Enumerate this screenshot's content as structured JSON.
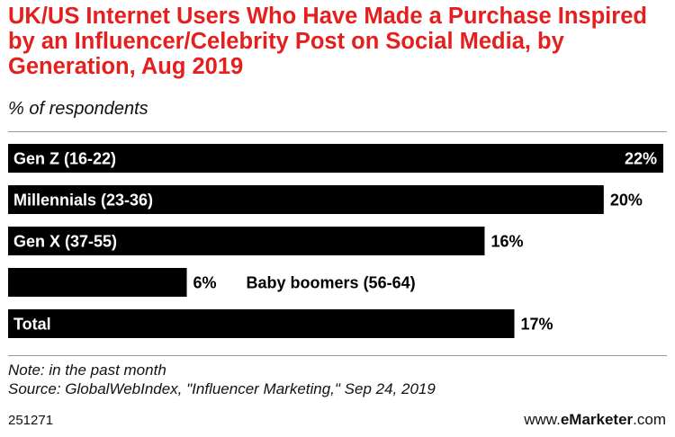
{
  "chart_data": {
    "type": "bar",
    "orientation": "horizontal",
    "title": "UK/US Internet Users Who Have Made a Purchase Inspired by an Influencer/Celebrity Post on Social Media, by Generation, Aug 2019",
    "subtitle": "% of respondents",
    "categories": [
      "Gen Z (16-22)",
      "Millennials (23-36)",
      "Gen X (37-55)",
      "Baby boomers (56-64)",
      "Total"
    ],
    "values": [
      22,
      20,
      16,
      6,
      17
    ],
    "value_labels": [
      "22%",
      "20%",
      "16%",
      "6%",
      "17%"
    ],
    "xlim": [
      0,
      22
    ],
    "grid": false,
    "bar_color": "#000000"
  },
  "notes": {
    "note": "Note: in the past month",
    "source": "Source: GlobalWebIndex, \"Influencer Marketing,\" Sep 24, 2019"
  },
  "footer": {
    "id": "251271",
    "brand_prefix": "www.",
    "brand_name": "eMarketer",
    "brand_suffix": ".com"
  },
  "colors": {
    "title": "#e4201f",
    "bar": "#000000"
  }
}
